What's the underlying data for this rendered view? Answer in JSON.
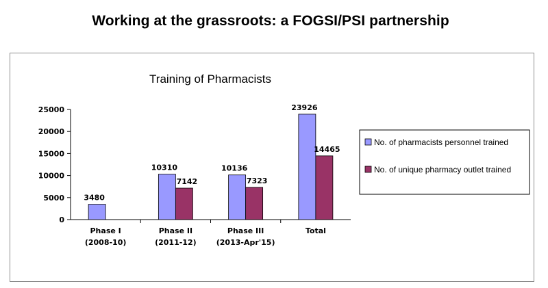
{
  "page": {
    "title": "Working at the grassroots: a FOGSI/PSI partnership"
  },
  "colors": {
    "series_1": "#9999ff",
    "series_2": "#993366",
    "frame": "#8c8c8c",
    "axis": "#000000"
  },
  "chart_data": {
    "type": "bar",
    "title": "Training of Pharmacists",
    "categories": [
      [
        "Phase I",
        "(2008-10)"
      ],
      [
        "Phase II",
        "(2011-12)"
      ],
      [
        "Phase III",
        "(2013-Apr'15)"
      ],
      [
        "Total"
      ]
    ],
    "series": [
      {
        "name": "No. of pharmacists personnel trained",
        "values": [
          3480,
          10310,
          10136,
          23926
        ]
      },
      {
        "name": "No. of unique pharmacy outlet trained",
        "values": [
          null,
          7142,
          7323,
          14465
        ]
      }
    ],
    "ylim": [
      0,
      25000
    ],
    "yticks": [
      0,
      5000,
      10000,
      15000,
      20000,
      25000
    ],
    "xlabel": "",
    "ylabel": "",
    "grid": false,
    "legend": "right",
    "data_labels": true
  }
}
